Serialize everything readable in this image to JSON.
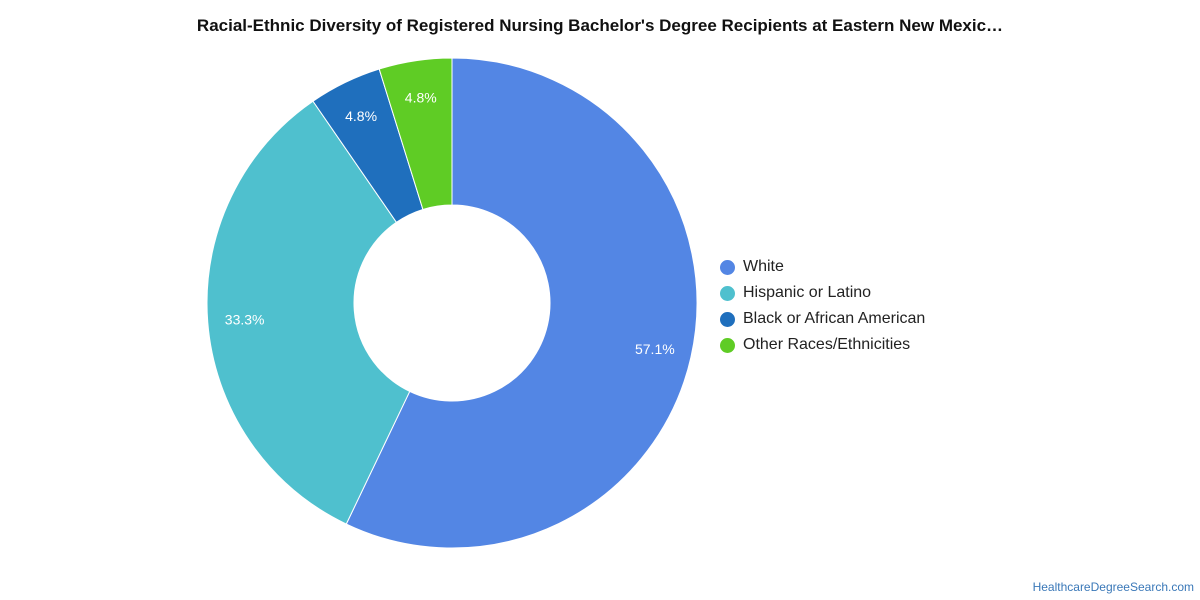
{
  "chart_data": {
    "type": "pie",
    "title": "Racial-Ethnic Diversity of Registered Nursing Bachelor's Degree Recipients at Eastern New Mexic…",
    "donut": true,
    "legend_position": "right",
    "slices": [
      {
        "name": "White",
        "value": 57.1,
        "label": "57.1%",
        "color": "#5386e4"
      },
      {
        "name": "Hispanic or Latino",
        "value": 33.3,
        "label": "33.3%",
        "color": "#4fc0ce"
      },
      {
        "name": "Black or African American",
        "value": 4.8,
        "label": "4.8%",
        "color": "#1f6fbd"
      },
      {
        "name": "Other Races/Ethnicities",
        "value": 4.8,
        "label": "4.8%",
        "color": "#5fcc25"
      }
    ]
  },
  "footer": {
    "source": "HealthcareDegreeSearch.com"
  }
}
